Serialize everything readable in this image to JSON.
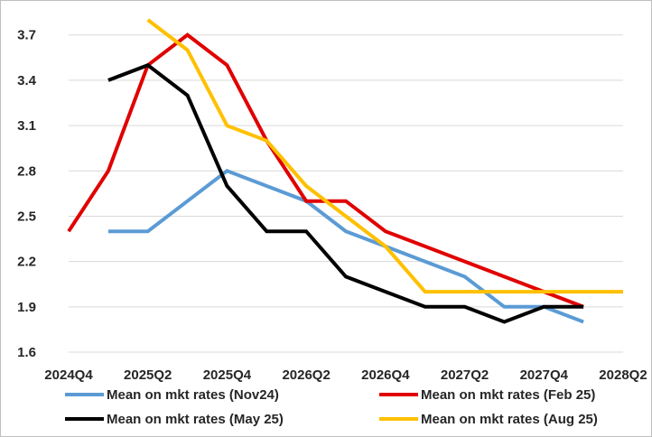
{
  "chart_data": {
    "type": "line",
    "title": "",
    "xlabel": "",
    "ylabel": "",
    "x": [
      "2024Q4",
      "2025Q1",
      "2025Q2",
      "2025Q3",
      "2025Q4",
      "2026Q1",
      "2026Q2",
      "2026Q3",
      "2026Q4",
      "2027Q1",
      "2027Q2",
      "2027Q3",
      "2027Q4",
      "2028Q1",
      "2028Q2"
    ],
    "x_tick_labels": [
      "2024Q4",
      "2025Q2",
      "2025Q4",
      "2026Q2",
      "2026Q4",
      "2027Q2",
      "2027Q4",
      "2028Q2"
    ],
    "ylim": [
      1.6,
      3.8
    ],
    "y_ticks": [
      1.6,
      1.9,
      2.2,
      2.5,
      2.8,
      3.1,
      3.4,
      3.7
    ],
    "grid": "horizontal",
    "legend_position": "bottom",
    "series": [
      {
        "name": "Mean on mkt rates (Nov24)",
        "color": "#5b9bd5",
        "values": [
          null,
          2.4,
          2.4,
          2.6,
          2.8,
          2.7,
          2.6,
          2.4,
          2.3,
          2.2,
          2.1,
          1.9,
          1.9,
          1.8,
          null
        ]
      },
      {
        "name": "Mean on mkt rates (Feb 25)",
        "color": "#e00000",
        "values": [
          2.4,
          2.8,
          3.5,
          3.7,
          3.5,
          3.0,
          2.6,
          2.6,
          2.4,
          2.3,
          2.2,
          2.1,
          2.0,
          1.9,
          null
        ]
      },
      {
        "name": "Mean on mkt rates (May 25)",
        "color": "#000000",
        "values": [
          null,
          3.4,
          3.5,
          3.3,
          2.7,
          2.4,
          2.4,
          2.1,
          2.0,
          1.9,
          1.9,
          1.8,
          1.9,
          1.9,
          null
        ]
      },
      {
        "name": "Mean on mkt rates (Aug 25)",
        "color": "#ffc000",
        "values": [
          null,
          null,
          3.8,
          3.6,
          3.1,
          3.0,
          2.7,
          2.5,
          2.3,
          2.0,
          2.0,
          2.0,
          2.0,
          2.0,
          2.0
        ]
      }
    ]
  }
}
